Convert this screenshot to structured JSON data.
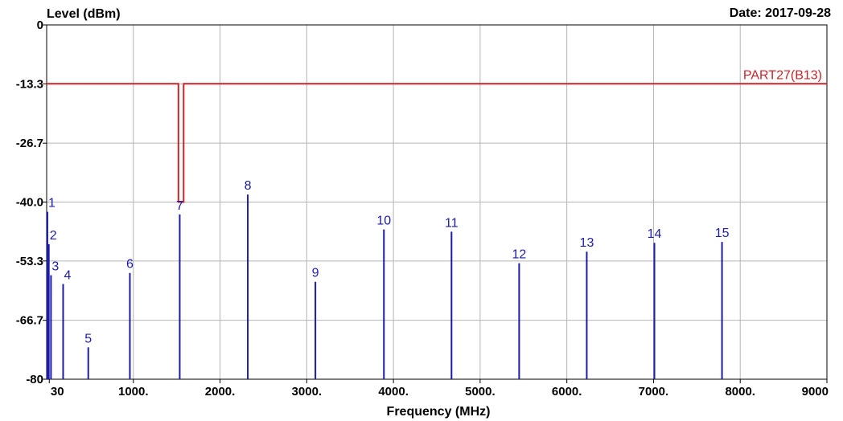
{
  "header": {
    "y_axis_title": "Level (dBm)",
    "date": "Date: 2017-09-28"
  },
  "chart_data": {
    "type": "bar",
    "xlabel": "Frequency (MHz)",
    "ylabel": "Level (dBm)",
    "xlim": [
      0,
      9000
    ],
    "ylim": [
      -80,
      0
    ],
    "x_ticks": [
      {
        "value": 30,
        "label": "30"
      },
      {
        "value": 1000,
        "label": "1000."
      },
      {
        "value": 2000,
        "label": "2000."
      },
      {
        "value": 3000,
        "label": "3000."
      },
      {
        "value": 4000,
        "label": "4000."
      },
      {
        "value": 5000,
        "label": "5000."
      },
      {
        "value": 6000,
        "label": "6000."
      },
      {
        "value": 7000,
        "label": "7000."
      },
      {
        "value": 8000,
        "label": "8000."
      },
      {
        "value": 9000,
        "label": "9000"
      }
    ],
    "y_ticks": [
      {
        "value": 0,
        "label": "0"
      },
      {
        "value": -13.3,
        "label": "-13.3"
      },
      {
        "value": -26.7,
        "label": "-26.7"
      },
      {
        "value": -40,
        "label": "-40.0"
      },
      {
        "value": -53.3,
        "label": "-53.3"
      },
      {
        "value": -66.7,
        "label": "-66.7"
      },
      {
        "value": -80,
        "label": "-80"
      }
    ],
    "grid": true,
    "markers": [
      {
        "label": "1",
        "freq": 9,
        "level": -42.2
      },
      {
        "label": "2",
        "freq": 25,
        "level": -49.5
      },
      {
        "label": "3",
        "freq": 50,
        "level": -56.5
      },
      {
        "label": "4",
        "freq": 190,
        "level": -58.5
      },
      {
        "label": "5",
        "freq": 480,
        "level": -72.8
      },
      {
        "label": "6",
        "freq": 960,
        "level": -56.0
      },
      {
        "label": "7",
        "freq": 1535,
        "level": -42.8
      },
      {
        "label": "8",
        "freq": 2320,
        "level": -38.3
      },
      {
        "label": "9",
        "freq": 3100,
        "level": -58.0
      },
      {
        "label": "10",
        "freq": 3890,
        "level": -46.2
      },
      {
        "label": "11",
        "freq": 4670,
        "level": -46.7
      },
      {
        "label": "12",
        "freq": 5450,
        "level": -53.8
      },
      {
        "label": "13",
        "freq": 6230,
        "level": -51.2
      },
      {
        "label": "14",
        "freq": 7010,
        "level": -49.2
      },
      {
        "label": "15",
        "freq": 7790,
        "level": -49.0
      }
    ],
    "limit_line": {
      "name": "PART27(B13)",
      "points": [
        [
          0,
          -13.3
        ],
        [
          1520,
          -13.3
        ],
        [
          1520,
          -40.0
        ],
        [
          1580,
          -40.0
        ],
        [
          1580,
          -13.3
        ],
        [
          9000,
          -13.3
        ]
      ]
    },
    "colors": {
      "markers": "#1c1ca8",
      "limit": "#c8242a",
      "grid": "#b4b4b4",
      "frame": "#000000"
    }
  }
}
